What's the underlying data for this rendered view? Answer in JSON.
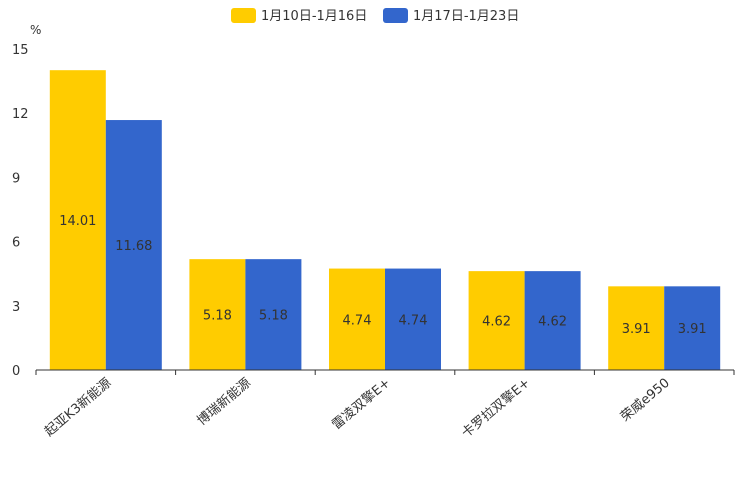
{
  "chart_data": {
    "type": "bar",
    "title": "",
    "xlabel": "",
    "ylabel": "%",
    "ylim": [
      0,
      15
    ],
    "yticks": [
      0,
      3,
      6,
      9,
      12,
      15
    ],
    "grid": false,
    "legend_position": "top-center",
    "categories": [
      "起亚K3新能源",
      "博瑞新能源",
      "雷凌双擎E+",
      "卡罗拉双擎E+",
      "荣威e950"
    ],
    "series": [
      {
        "name": "1月10日-1月16日",
        "color": "#FFCC00",
        "values": [
          14.01,
          5.18,
          4.74,
          4.62,
          3.91
        ]
      },
      {
        "name": "1月17日-1月23日",
        "color": "#3366CC",
        "values": [
          11.68,
          5.18,
          4.74,
          4.62,
          3.91
        ]
      }
    ]
  }
}
